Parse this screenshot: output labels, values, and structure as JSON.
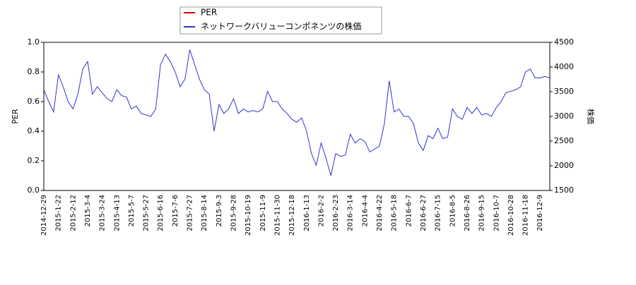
{
  "chart_data": {
    "type": "line",
    "categories": [
      "2014-12-29",
      null,
      null,
      "2015-1-22",
      null,
      null,
      "2015-2-12",
      null,
      null,
      "2015-3-4",
      null,
      null,
      "2015-3-24",
      null,
      null,
      "2015-4-13",
      null,
      null,
      "2015-5-7",
      null,
      null,
      "2015-5-27",
      null,
      null,
      "2015-6-16",
      null,
      null,
      "2015-7-6",
      null,
      null,
      "2015-7-27",
      null,
      null,
      "2015-8-14",
      null,
      null,
      "2015-9-3",
      null,
      null,
      "2015-9-28",
      null,
      null,
      "2015-10-19",
      null,
      null,
      "2015-11-9",
      null,
      null,
      "2015-11-30",
      null,
      null,
      "2015-12-18",
      null,
      null,
      "2016-1-13",
      null,
      null,
      "2016-2-2",
      null,
      null,
      "2016-2-23",
      null,
      null,
      "2016-3-14",
      null,
      null,
      "2016-4-4",
      null,
      null,
      "2016-4-22",
      null,
      null,
      "2016-5-18",
      null,
      null,
      "2016-6-7",
      null,
      null,
      "2016-6-27",
      null,
      null,
      "2016-7-15",
      null,
      null,
      "2016-8-5",
      null,
      null,
      "2016-8-26",
      null,
      null,
      "2016-9-15",
      null,
      null,
      "2016-10-7",
      null,
      null,
      "2016-10-28",
      null,
      null,
      "2016-11-18",
      null,
      null,
      "2016-12-9",
      null,
      null
    ],
    "series": [
      {
        "name": "PER",
        "color": "#dd0000",
        "values": [
          null,
          null,
          null,
          null,
          null,
          null,
          null,
          null,
          null,
          null,
          null,
          null,
          null,
          null,
          null,
          null,
          null,
          null,
          null,
          null,
          null,
          null,
          null,
          null,
          null,
          null,
          null,
          null,
          null,
          null,
          null,
          null,
          null,
          null,
          null,
          null,
          null,
          null,
          null,
          null,
          null,
          null,
          null,
          null,
          null,
          null,
          null,
          null,
          null,
          null,
          null,
          null,
          null,
          null,
          null,
          null,
          null,
          null,
          null,
          null,
          null,
          null,
          null,
          null,
          null,
          null,
          null,
          null,
          null,
          null,
          null,
          null,
          null,
          null,
          null,
          null,
          null,
          null,
          null,
          null,
          null,
          null,
          null,
          null,
          null,
          null,
          null,
          null,
          null,
          null,
          null,
          null,
          null,
          null,
          null,
          null,
          null,
          null,
          null,
          null,
          null,
          null,
          null,
          null,
          null
        ]
      },
      {
        "name": "ネットワークバリューコンポネンツの株価",
        "color": "#3333cc",
        "axis": "y2",
        "values": [
          3540,
          3300,
          3090,
          3840,
          3600,
          3300,
          3150,
          3450,
          3960,
          4110,
          3450,
          3600,
          3480,
          3360,
          3300,
          3540,
          3420,
          3390,
          3150,
          3210,
          3060,
          3030,
          3000,
          3150,
          4050,
          4260,
          4110,
          3900,
          3600,
          3750,
          4350,
          4050,
          3750,
          3540,
          3450,
          2700,
          3240,
          3060,
          3150,
          3360,
          3060,
          3150,
          3090,
          3120,
          3090,
          3150,
          3510,
          3300,
          3300,
          3150,
          3060,
          2940,
          2880,
          2970,
          2700,
          2250,
          2010,
          2460,
          2160,
          1800,
          2250,
          2190,
          2220,
          2640,
          2460,
          2550,
          2490,
          2280,
          2340,
          2400,
          2850,
          3720,
          3090,
          3150,
          3000,
          3000,
          2850,
          2460,
          2310,
          2610,
          2550,
          2760,
          2550,
          2580,
          3150,
          3000,
          2940,
          3180,
          3060,
          3180,
          3030,
          3060,
          3000,
          3180,
          3300,
          3480,
          3510,
          3540,
          3600,
          3900,
          3960,
          3780,
          3780,
          3810,
          3780
        ]
      }
    ],
    "ylabel": "PER",
    "y2label": "株価",
    "ylim": [
      0,
      1
    ],
    "yticks": [
      {
        "value": 0,
        "label": "0.0"
      },
      0.2,
      0.4,
      0.6,
      0.8,
      {
        "value": 1,
        "label": "1.0"
      }
    ],
    "y2lim": [
      1500,
      4500
    ],
    "y2ticks": [
      1500,
      2000,
      2500,
      3000,
      3500,
      4000,
      4500
    ]
  }
}
